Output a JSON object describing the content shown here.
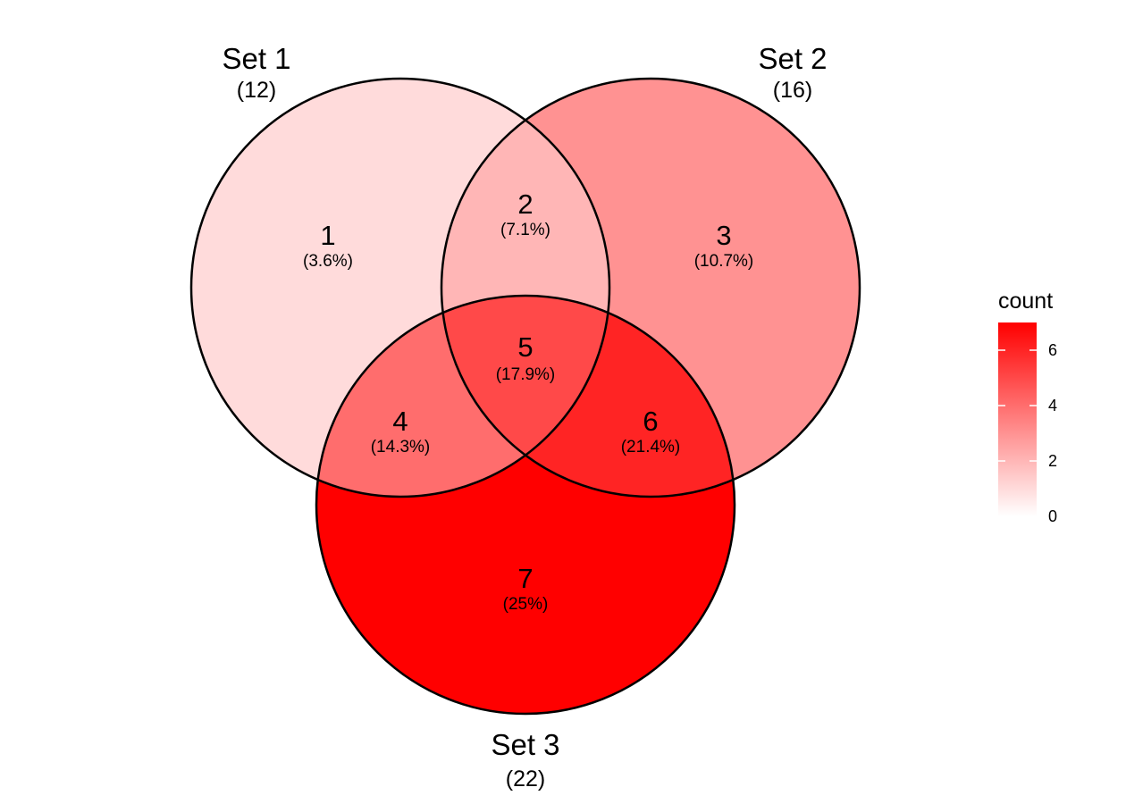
{
  "chart_data": {
    "type": "venn",
    "sets": [
      {
        "name": "Set 1",
        "total_label": "(12)",
        "total": 12
      },
      {
        "name": "Set 2",
        "total_label": "(16)",
        "total": 16
      },
      {
        "name": "Set 3",
        "total_label": "(22)",
        "total": 22
      }
    ],
    "regions": [
      {
        "id": "only-1",
        "members": [
          "Set 1"
        ],
        "count": 1,
        "count_label": "1",
        "percent": "(3.6%)"
      },
      {
        "id": "1-2",
        "members": [
          "Set 1",
          "Set 2"
        ],
        "count": 2,
        "count_label": "2",
        "percent": "(7.1%)"
      },
      {
        "id": "only-2",
        "members": [
          "Set 2"
        ],
        "count": 3,
        "count_label": "3",
        "percent": "(10.7%)"
      },
      {
        "id": "1-3",
        "members": [
          "Set 1",
          "Set 3"
        ],
        "count": 4,
        "count_label": "4",
        "percent": "(14.3%)"
      },
      {
        "id": "1-2-3",
        "members": [
          "Set 1",
          "Set 2",
          "Set 3"
        ],
        "count": 5,
        "count_label": "5",
        "percent": "(17.9%)"
      },
      {
        "id": "2-3",
        "members": [
          "Set 2",
          "Set 3"
        ],
        "count": 6,
        "count_label": "6",
        "percent": "(21.4%)"
      },
      {
        "id": "only-3",
        "members": [
          "Set 3"
        ],
        "count": 7,
        "count_label": "7",
        "percent": "(25%)"
      }
    ],
    "legend": {
      "title": "count",
      "ticks": [
        "0",
        "2",
        "4",
        "6"
      ],
      "tick_values": [
        0,
        2,
        4,
        6
      ],
      "range": [
        0,
        7
      ],
      "low_color": "#FFFFFF",
      "high_color": "#FF0000",
      "placement": "right"
    },
    "outline_color": "#000000"
  }
}
